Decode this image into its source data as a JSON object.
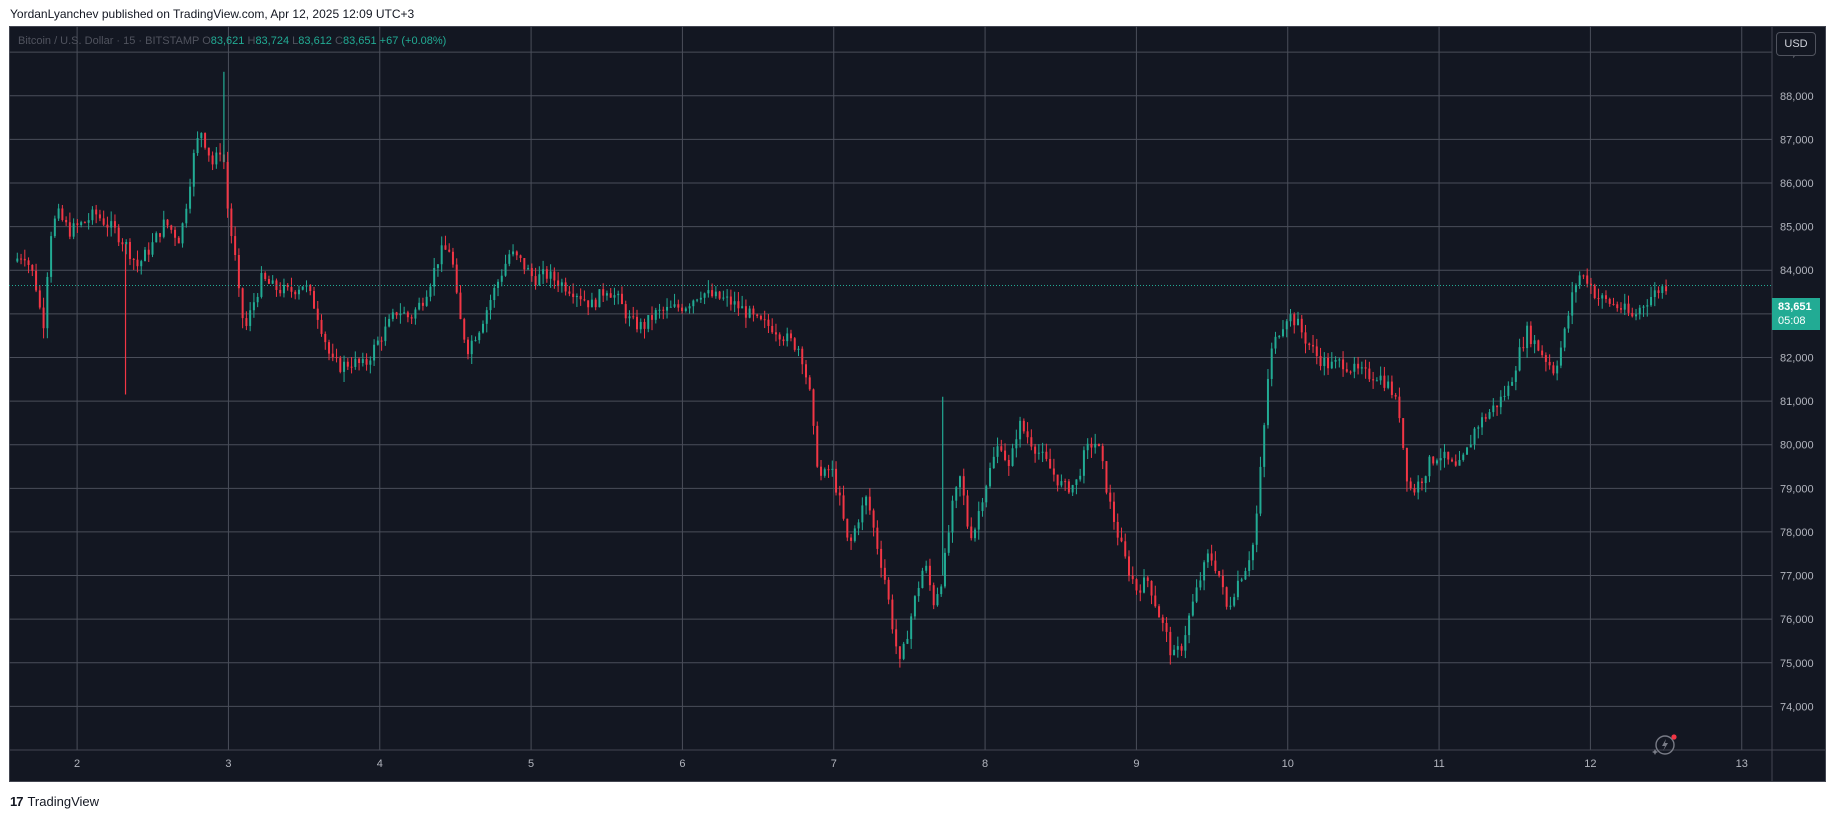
{
  "header": {
    "caption": "YordanLyanchev published on TradingView.com, Apr 12, 2025 12:09 UTC+3"
  },
  "legend": {
    "symbol": "Bitcoin / U.S. Dollar · 15 · BITSTAMP",
    "o_label": "O",
    "o_value": "83,621",
    "h_label": "H",
    "h_value": "83,724",
    "l_label": "L",
    "l_value": "83,612",
    "c_label": "C",
    "c_value": "83,651",
    "change": "+67 (+0.08%)"
  },
  "price_scale": {
    "currency_button": "USD",
    "last_price": "83,651",
    "countdown": "05:08"
  },
  "footer": {
    "logo_mark": "17",
    "logo_text": "TradingView"
  },
  "colors": {
    "background": "#131722",
    "grid": "#4a4e5a",
    "up": "#22ab94",
    "down": "#f23645",
    "axis_text": "#b2b5be"
  },
  "icons": {
    "assistant": "sparkle-lightning-icon"
  },
  "chart_data": {
    "type": "candlestick",
    "series_name": "Bitcoin / U.S. Dollar",
    "interval": "15",
    "exchange": "BITSTAMP",
    "xlim": [
      1.55,
      13.2
    ],
    "ylim": [
      73000,
      89600
    ],
    "x_ticks": [
      2,
      3,
      4,
      5,
      6,
      7,
      8,
      9,
      10,
      11,
      12,
      13
    ],
    "x_tick_labels": [
      "2",
      "3",
      "4",
      "5",
      "6",
      "7",
      "8",
      "9",
      "10",
      "11",
      "12",
      "13"
    ],
    "y_ticks": [
      74000,
      75000,
      76000,
      77000,
      78000,
      79000,
      80000,
      81000,
      82000,
      83000,
      84000,
      85000,
      86000,
      87000,
      88000,
      89000
    ],
    "y_tick_labels": [
      "74,000",
      "75,000",
      "76,000",
      "77,000",
      "78,000",
      "79,000",
      "80,000",
      "81,000",
      "82,000",
      "83,000",
      "84,000",
      "85,000",
      "86,000",
      "87,000",
      "88,000",
      "89,000"
    ],
    "last_price": 83651,
    "grid": true,
    "path": [
      [
        1.58,
        84200
      ],
      [
        1.65,
        84400
      ],
      [
        1.72,
        83800
      ],
      [
        1.76,
        83000
      ],
      [
        1.78,
        82800
      ],
      [
        1.82,
        84800
      ],
      [
        1.87,
        85300
      ],
      [
        1.95,
        84900
      ],
      [
        2.05,
        85100
      ],
      [
        2.12,
        85300
      ],
      [
        2.25,
        84900
      ],
      [
        2.32,
        84600
      ],
      [
        2.4,
        84100
      ],
      [
        2.5,
        84600
      ],
      [
        2.58,
        85100
      ],
      [
        2.68,
        84700
      ],
      [
        2.72,
        85500
      ],
      [
        2.78,
        86800
      ],
      [
        2.82,
        87200
      ],
      [
        2.85,
        86900
      ],
      [
        2.9,
        86400
      ],
      [
        2.96,
        86900
      ],
      [
        3.0,
        85200
      ],
      [
        3.04,
        84400
      ],
      [
        3.07,
        83400
      ],
      [
        3.11,
        82600
      ],
      [
        3.16,
        83200
      ],
      [
        3.22,
        83800
      ],
      [
        3.3,
        83600
      ],
      [
        3.4,
        83500
      ],
      [
        3.5,
        83700
      ],
      [
        3.58,
        83100
      ],
      [
        3.64,
        82400
      ],
      [
        3.68,
        81900
      ],
      [
        3.74,
        81800
      ],
      [
        3.82,
        81900
      ],
      [
        3.9,
        81800
      ],
      [
        3.96,
        82200
      ],
      [
        4.05,
        82700
      ],
      [
        4.12,
        83100
      ],
      [
        4.2,
        82900
      ],
      [
        4.28,
        83300
      ],
      [
        4.34,
        83800
      ],
      [
        4.4,
        84400
      ],
      [
        4.47,
        84500
      ],
      [
        4.52,
        83000
      ],
      [
        4.58,
        82200
      ],
      [
        4.66,
        82700
      ],
      [
        4.74,
        83400
      ],
      [
        4.8,
        83900
      ],
      [
        4.86,
        84400
      ],
      [
        4.93,
        84200
      ],
      [
        5.02,
        83800
      ],
      [
        5.1,
        83900
      ],
      [
        5.2,
        83700
      ],
      [
        5.3,
        83500
      ],
      [
        5.4,
        83200
      ],
      [
        5.5,
        83600
      ],
      [
        5.58,
        83300
      ],
      [
        5.66,
        82800
      ],
      [
        5.74,
        82700
      ],
      [
        5.82,
        83000
      ],
      [
        5.92,
        83100
      ],
      [
        6.02,
        83200
      ],
      [
        6.12,
        83500
      ],
      [
        6.2,
        83400
      ],
      [
        6.3,
        83300
      ],
      [
        6.4,
        83100
      ],
      [
        6.5,
        82800
      ],
      [
        6.6,
        82700
      ],
      [
        6.7,
        82400
      ],
      [
        6.78,
        82200
      ],
      [
        6.84,
        81200
      ],
      [
        6.88,
        79800
      ],
      [
        6.92,
        79200
      ],
      [
        6.98,
        79500
      ],
      [
        7.04,
        78700
      ],
      [
        7.1,
        77600
      ],
      [
        7.16,
        78300
      ],
      [
        7.22,
        78800
      ],
      [
        7.28,
        77800
      ],
      [
        7.34,
        76900
      ],
      [
        7.4,
        75600
      ],
      [
        7.44,
        74900
      ],
      [
        7.48,
        75600
      ],
      [
        7.54,
        76500
      ],
      [
        7.6,
        77300
      ],
      [
        7.66,
        76400
      ],
      [
        7.72,
        77000
      ],
      [
        7.78,
        78500
      ],
      [
        7.84,
        79300
      ],
      [
        7.88,
        78200
      ],
      [
        7.92,
        77900
      ],
      [
        7.98,
        78800
      ],
      [
        8.04,
        79500
      ],
      [
        8.1,
        80100
      ],
      [
        8.16,
        79400
      ],
      [
        8.22,
        80500
      ],
      [
        8.28,
        80200
      ],
      [
        8.36,
        79800
      ],
      [
        8.44,
        79400
      ],
      [
        8.52,
        79000
      ],
      [
        8.6,
        79100
      ],
      [
        8.66,
        79800
      ],
      [
        8.72,
        80100
      ],
      [
        8.76,
        79800
      ],
      [
        8.82,
        78700
      ],
      [
        8.88,
        77900
      ],
      [
        8.94,
        77200
      ],
      [
        9.0,
        76700
      ],
      [
        9.08,
        76900
      ],
      [
        9.14,
        76200
      ],
      [
        9.2,
        75600
      ],
      [
        9.24,
        75100
      ],
      [
        9.3,
        75400
      ],
      [
        9.36,
        76200
      ],
      [
        9.42,
        76900
      ],
      [
        9.48,
        77500
      ],
      [
        9.54,
        77100
      ],
      [
        9.6,
        76200
      ],
      [
        9.66,
        76800
      ],
      [
        9.72,
        77200
      ],
      [
        9.78,
        77800
      ],
      [
        9.84,
        80200
      ],
      [
        9.88,
        82000
      ],
      [
        9.94,
        82600
      ],
      [
        10.0,
        83000
      ],
      [
        10.06,
        82800
      ],
      [
        10.12,
        82400
      ],
      [
        10.2,
        82000
      ],
      [
        10.28,
        81800
      ],
      [
        10.36,
        81900
      ],
      [
        10.44,
        81700
      ],
      [
        10.52,
        81600
      ],
      [
        10.6,
        81600
      ],
      [
        10.68,
        81300
      ],
      [
        10.74,
        80700
      ],
      [
        10.78,
        79400
      ],
      [
        10.82,
        78900
      ],
      [
        10.88,
        79200
      ],
      [
        10.94,
        79600
      ],
      [
        11.0,
        79800
      ],
      [
        11.06,
        79600
      ],
      [
        11.12,
        79400
      ],
      [
        11.18,
        79800
      ],
      [
        11.24,
        80400
      ],
      [
        11.32,
        80700
      ],
      [
        11.4,
        81000
      ],
      [
        11.46,
        81300
      ],
      [
        11.52,
        82000
      ],
      [
        11.58,
        82600
      ],
      [
        11.64,
        82300
      ],
      [
        11.7,
        82000
      ],
      [
        11.76,
        81700
      ],
      [
        11.82,
        82400
      ],
      [
        11.88,
        83400
      ],
      [
        11.92,
        83900
      ],
      [
        11.98,
        83800
      ],
      [
        12.04,
        83400
      ],
      [
        12.1,
        83300
      ],
      [
        12.16,
        83200
      ],
      [
        12.22,
        83100
      ],
      [
        12.28,
        82900
      ],
      [
        12.34,
        83200
      ],
      [
        12.4,
        83400
      ],
      [
        12.45,
        83550
      ],
      [
        12.5,
        83651
      ]
    ],
    "spikes": [
      [
        2.32,
        81150
      ],
      [
        2.97,
        88550
      ],
      [
        7.72,
        81100
      ]
    ]
  }
}
